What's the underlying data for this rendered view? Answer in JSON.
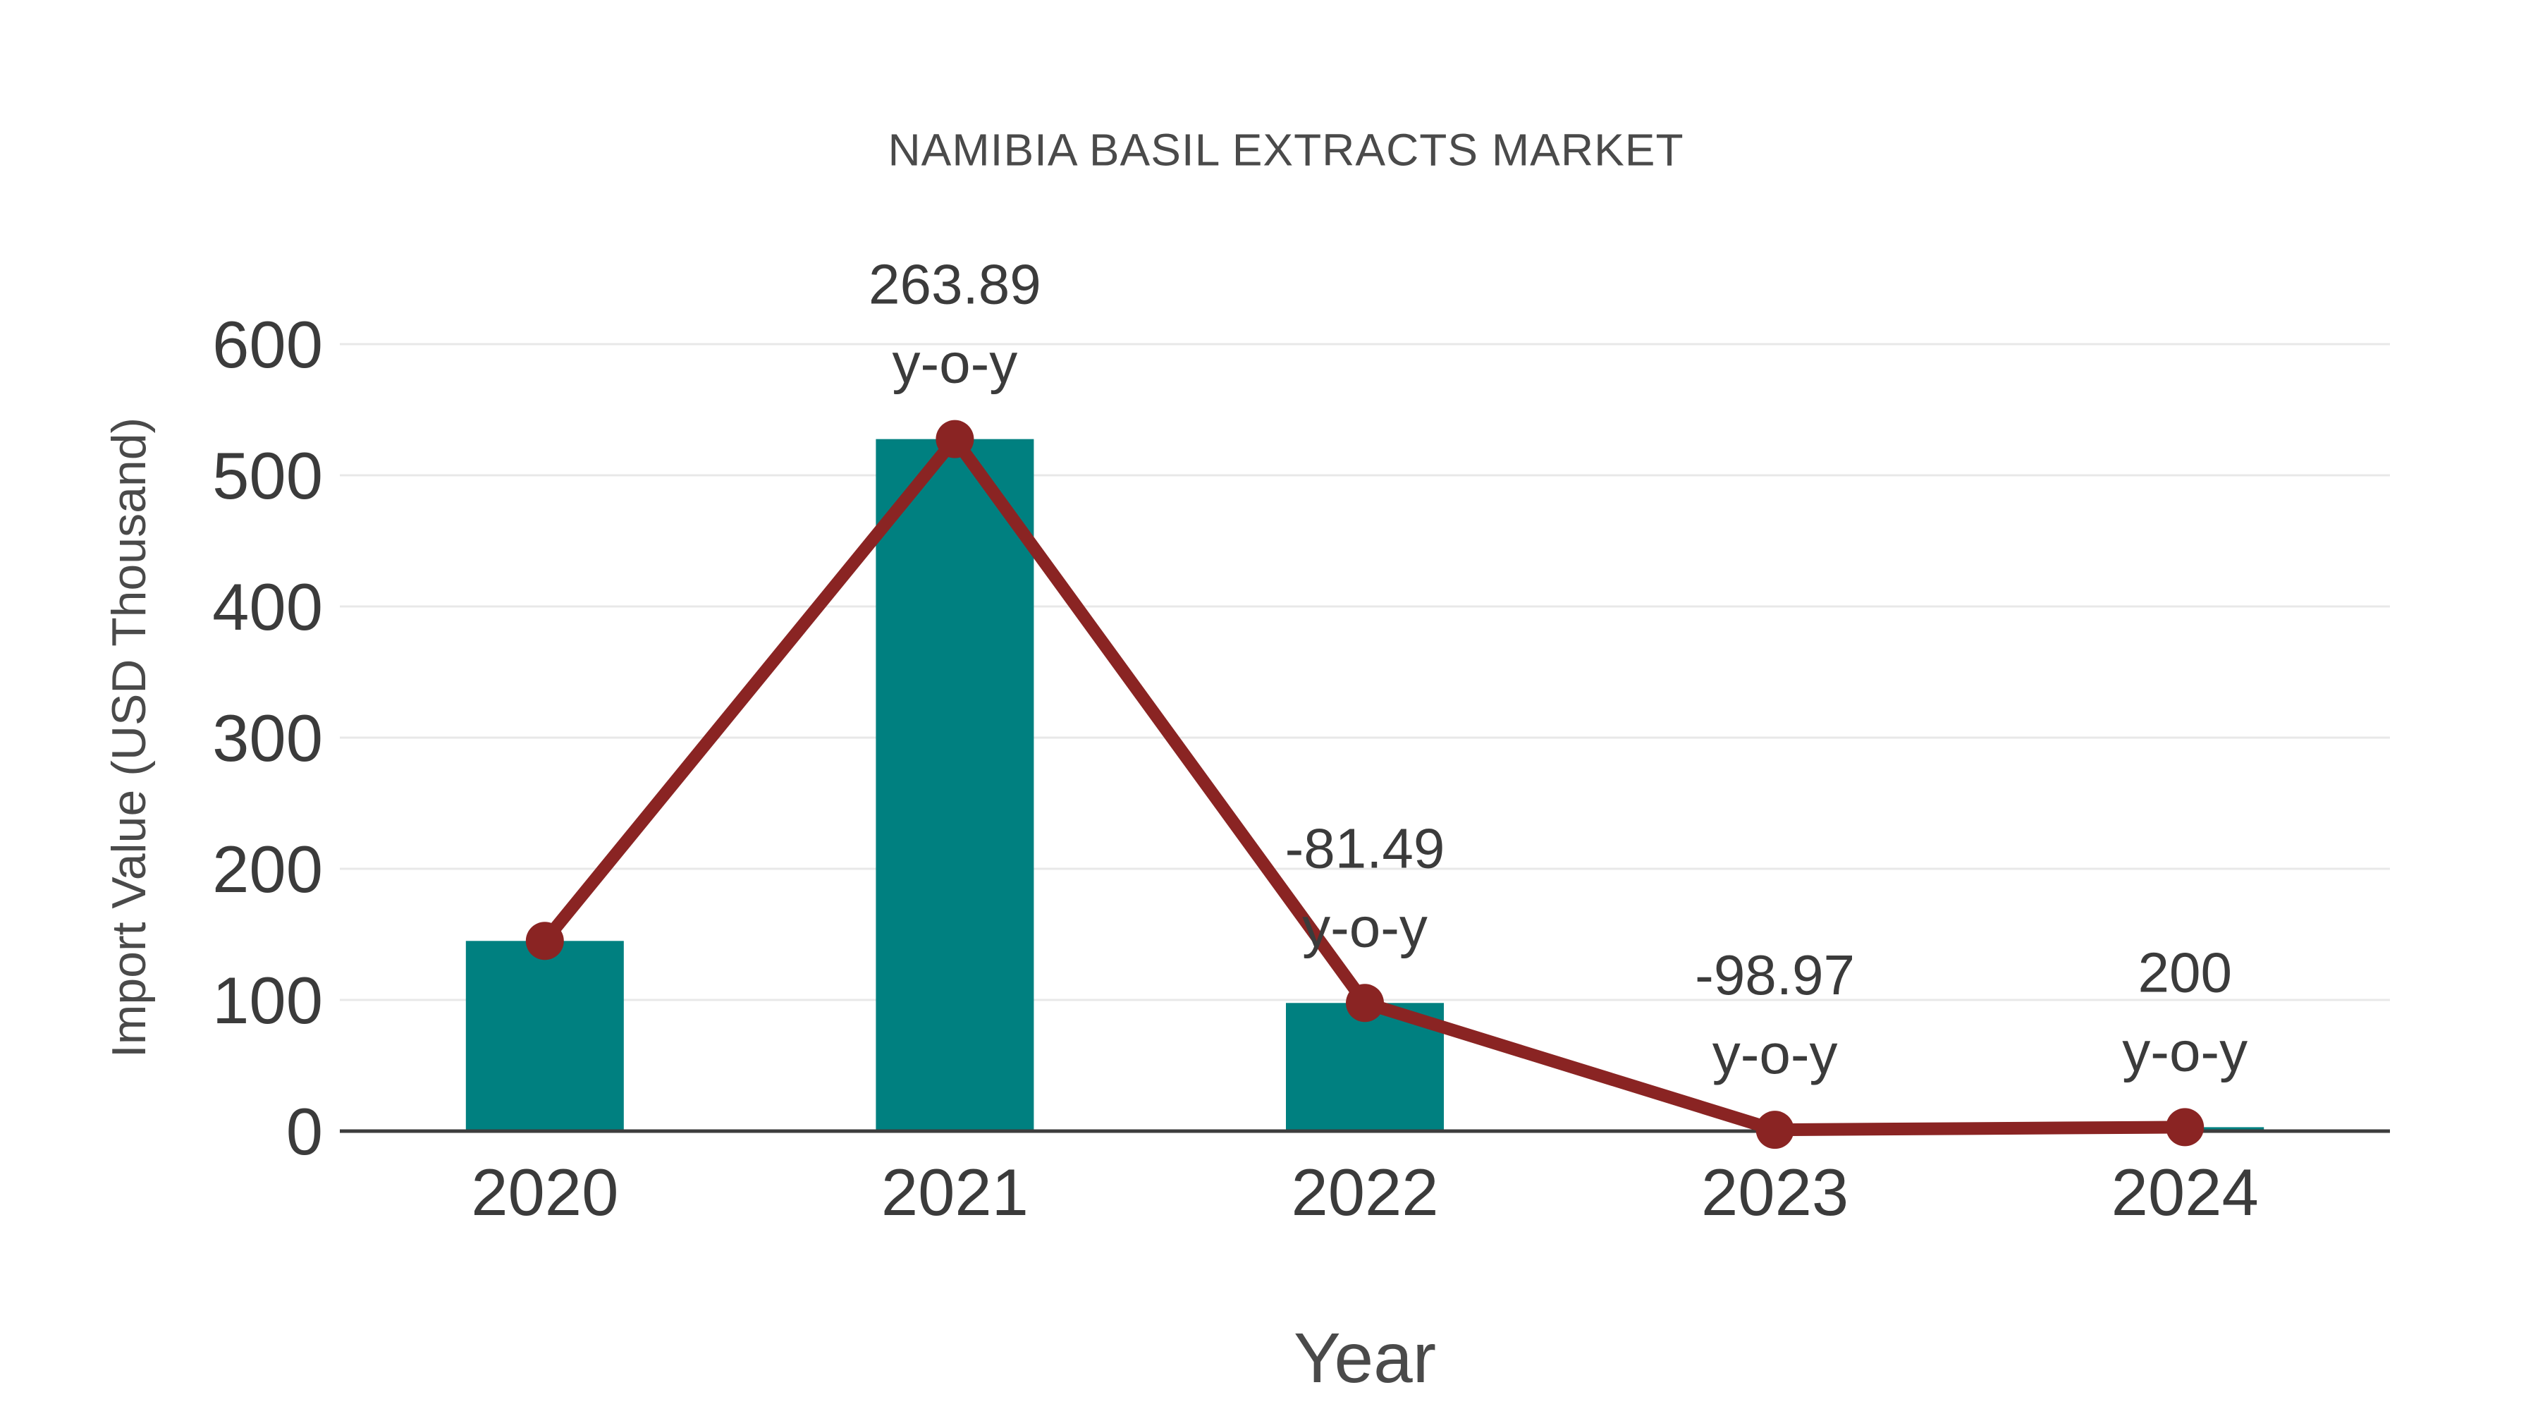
{
  "page": {
    "background": "#ffffff"
  },
  "chart_data": {
    "type": "bar",
    "title": "NAMIBIA BASIL EXTRACTS MARKET",
    "xlabel": "Year",
    "ylabel": "Import Value (USD Thousand)",
    "categories": [
      "2020",
      "2021",
      "2022",
      "2023",
      "2024"
    ],
    "series": [
      {
        "name": "Import Value (USD Thousand)",
        "chart": "bar",
        "color": "#008080",
        "values": [
          145,
          527.6,
          97.7,
          1.0,
          3.0
        ]
      },
      {
        "name": "Import Value trend line",
        "chart": "line",
        "color": "#8A2423",
        "values": [
          145,
          527.6,
          97.7,
          1.0,
          3.0
        ]
      }
    ],
    "yoy_growth_percent": [
      null,
      263.89,
      -81.49,
      -98.97,
      200
    ],
    "annotations": [
      {
        "category": "2021",
        "value_label": "263.89",
        "unit_label": "y-o-y"
      },
      {
        "category": "2022",
        "value_label": "-81.49",
        "unit_label": "y-o-y"
      },
      {
        "category": "2023",
        "value_label": "-98.97",
        "unit_label": "y-o-y"
      },
      {
        "category": "2024",
        "value_label": "200",
        "unit_label": "y-o-y"
      }
    ],
    "ylim": [
      0,
      600
    ],
    "yticks": [
      0,
      100,
      200,
      300,
      400,
      500,
      600
    ],
    "grid": "horizontal",
    "legend": "none"
  },
  "style": {
    "bar_color": "#008080",
    "line_color": "#8A2423",
    "grid_color": "#e8e8e8",
    "axis_color": "#3d3d3d",
    "tick_text_color": "#3b3b3b",
    "label_text_color": "#4a4a4a"
  }
}
